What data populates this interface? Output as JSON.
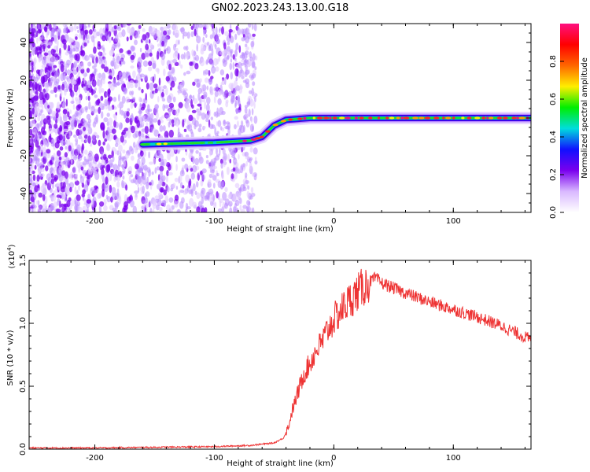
{
  "title": "GN02.2023.243.13.00.G18",
  "chart_data": [
    {
      "type": "heatmap",
      "xlabel": "Height of straight line (km)",
      "ylabel": "Frequency (Hz)",
      "xlim": [
        -255,
        165
      ],
      "ylim": [
        -50,
        50
      ],
      "xticks": [
        -200,
        -100,
        0,
        100
      ],
      "yticks": [
        -40,
        -20,
        0,
        20,
        40
      ],
      "colorbar": {
        "label": "Normalized spectral amplitude",
        "range": [
          0,
          1
        ],
        "ticks": [
          "0.0",
          "0.2",
          "0.4",
          "0.6",
          "0.8"
        ],
        "colors": [
          "#ffffff",
          "#d9b8ff",
          "#7a00ee",
          "#1010ff",
          "#00dddd",
          "#00ee00",
          "#ffee00",
          "#ff6600",
          "#ff0000",
          "#ff1080"
        ]
      },
      "ridge": [
        {
          "x": -160,
          "y": -14
        },
        {
          "x": -100,
          "y": -13
        },
        {
          "x": -70,
          "y": -12
        },
        {
          "x": -60,
          "y": -10
        },
        {
          "x": -50,
          "y": -4
        },
        {
          "x": -40,
          "y": -1
        },
        {
          "x": -20,
          "y": 0
        },
        {
          "x": 0,
          "y": 0
        },
        {
          "x": 165,
          "y": 0
        }
      ],
      "noise_extent": [
        -255,
        -65
      ]
    },
    {
      "type": "line",
      "xlabel": "Height of straight line (km)",
      "ylabel": "SNR (10 * v/v)",
      "multiplier": "(x10",
      "multiplier_exp": "4",
      "multiplier_close": ")",
      "xlim": [
        -255,
        165
      ],
      "ylim": [
        0,
        1.5
      ],
      "xticks": [
        -200,
        -100,
        0,
        100
      ],
      "yticks": [
        "0.0",
        "0.5",
        "1.0",
        "1.5"
      ],
      "color": "#ee3333",
      "series": [
        {
          "x": [
            -255,
            -200,
            -150,
            -100,
            -70,
            -50,
            -42,
            -38,
            -35,
            -30,
            -25,
            -20,
            -15,
            -10,
            -5,
            0,
            10,
            20,
            30,
            35,
            40,
            50,
            60,
            80,
            100,
            120,
            140,
            160,
            165
          ],
          "values": [
            0.01,
            0.01,
            0.015,
            0.02,
            0.03,
            0.05,
            0.09,
            0.18,
            0.3,
            0.45,
            0.6,
            0.68,
            0.78,
            0.85,
            0.95,
            1.03,
            1.15,
            1.25,
            1.33,
            1.36,
            1.32,
            1.28,
            1.24,
            1.17,
            1.11,
            1.05,
            0.98,
            0.89,
            0.87
          ]
        }
      ]
    }
  ]
}
